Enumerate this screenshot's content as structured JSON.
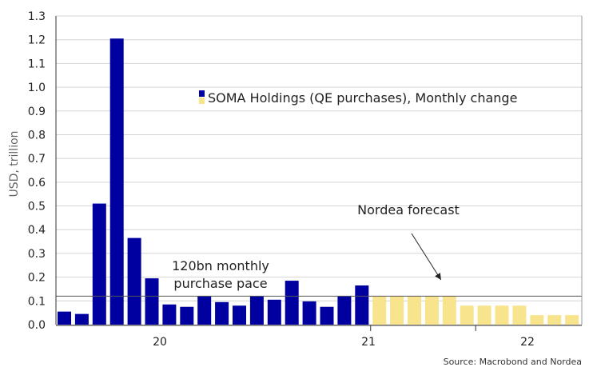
{
  "chart_data": {
    "type": "bar",
    "title": "",
    "ylabel": "USD, trillion",
    "xlabel": "",
    "ylim": [
      0,
      1.3
    ],
    "y_ticks": [
      "0.0",
      "0.1",
      "0.2",
      "0.3",
      "0.4",
      "0.5",
      "0.6",
      "0.7",
      "0.8",
      "0.9",
      "1.0",
      "1.1",
      "1.2",
      "1.3"
    ],
    "x_tick_labels": [
      "20",
      "21",
      "22"
    ],
    "legend_label": "SOMA Holdings (QE purchases), Monthly change",
    "legend_position": "top-right",
    "series": [
      {
        "name": "SOMA Holdings (QE purchases), Monthly change",
        "actual_color": "#0000a0",
        "forecast_color": "#f8e48c",
        "values": [
          0.055,
          0.045,
          0.51,
          1.205,
          0.365,
          0.195,
          0.085,
          0.075,
          0.12,
          0.095,
          0.08,
          0.12,
          0.105,
          0.185,
          0.098,
          0.075,
          0.12,
          0.165,
          0.12,
          0.12,
          0.12,
          0.12,
          0.12,
          0.08,
          0.08,
          0.08,
          0.08,
          0.04,
          0.04,
          0.04
        ],
        "forecast_from_index": 18
      }
    ],
    "reference_line": {
      "value": 0.12,
      "label_line1": "120bn monthly",
      "label_line2": "purchase pace"
    },
    "annotation": {
      "text": "Nordea forecast",
      "arrow_to_index": 22
    },
    "source": "Source: Macrobond and Nordea",
    "grid": true
  }
}
